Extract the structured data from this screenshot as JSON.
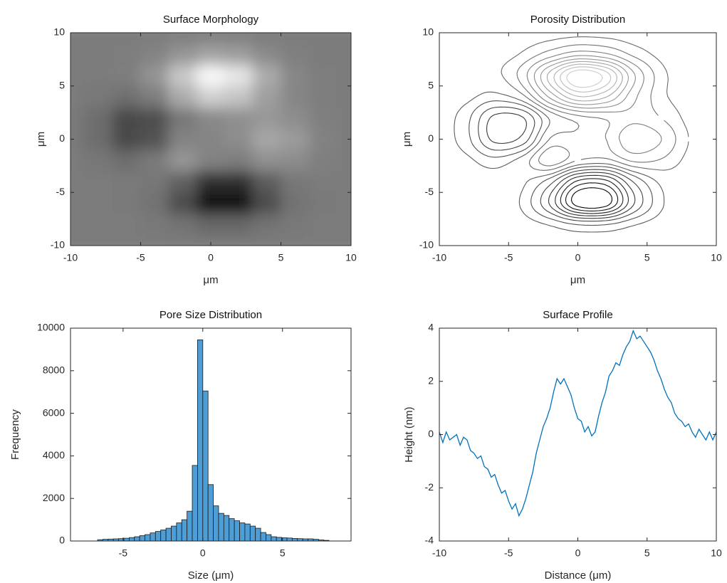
{
  "chart_data": [
    {
      "type": "heatmap",
      "title": "Surface Morphology",
      "xlabel": "μm",
      "ylabel": "μm",
      "colormap": "gray",
      "x": [
        -10,
        -8,
        -6,
        -4,
        -2,
        0,
        2,
        4,
        6,
        8,
        10
      ],
      "y": [
        -10,
        -8,
        -6,
        -4,
        -2,
        0,
        2,
        4,
        6,
        8,
        10
      ],
      "z": [
        [
          0,
          0,
          0,
          0,
          0,
          -0.01,
          -0.01,
          0,
          0,
          0,
          0
        ],
        [
          0,
          0,
          0,
          -0.04,
          -0.18,
          -0.42,
          -0.42,
          -0.18,
          -0.04,
          0,
          0
        ],
        [
          0,
          0,
          -0.02,
          -0.2,
          -1.05,
          -2.39,
          -2.39,
          -1.05,
          -0.2,
          -0.02,
          0
        ],
        [
          0,
          -0.01,
          -0.03,
          -0.1,
          -0.58,
          -1.68,
          -1.72,
          -0.69,
          -0.09,
          0,
          0
        ],
        [
          -0.01,
          -0.09,
          -0.3,
          -0.02,
          0.6,
          0.15,
          0.06,
          0.45,
          0.37,
          0.08,
          0
        ],
        [
          -0.03,
          -0.32,
          -1.09,
          -0.9,
          0.17,
          0.21,
          0.39,
          0.96,
          0.71,
          0.15,
          0.01
        ],
        [
          -0.03,
          -0.32,
          -1.09,
          -1.03,
          -0.1,
          0.28,
          0.44,
          0.62,
          0.4,
          0.08,
          0
        ],
        [
          -0.01,
          -0.08,
          -0.25,
          0.06,
          1.08,
          1.88,
          1.64,
          0.8,
          0.23,
          0.03,
          0
        ],
        [
          0,
          0,
          0.07,
          0.54,
          1.72,
          2.8,
          2.38,
          1.07,
          0.25,
          0.03,
          0
        ],
        [
          0,
          0,
          0.03,
          0.18,
          0.54,
          0.87,
          0.74,
          0.33,
          0.08,
          0.01,
          0
        ],
        [
          0,
          0,
          0,
          0.01,
          0.03,
          0.06,
          0.05,
          0.02,
          0.01,
          0,
          0
        ]
      ],
      "xlim": [
        -10,
        10
      ],
      "ylim": [
        -10,
        10
      ],
      "xticks": [
        -10,
        -5,
        0,
        5,
        10
      ],
      "yticks": [
        -10,
        -5,
        0,
        5,
        10
      ]
    },
    {
      "type": "contour",
      "title": "Porosity Distribution",
      "xlabel": "μm",
      "ylabel": "μm",
      "colormap": "gray",
      "x": [
        -10,
        -8,
        -6,
        -4,
        -2,
        0,
        2,
        4,
        6,
        8,
        10
      ],
      "y": [
        -10,
        -8,
        -6,
        -4,
        -2,
        0,
        2,
        4,
        6,
        8,
        10
      ],
      "z": [
        [
          0,
          0,
          0,
          0,
          0,
          -0.01,
          -0.01,
          0,
          0,
          0,
          0
        ],
        [
          0,
          0,
          0,
          -0.04,
          -0.18,
          -0.42,
          -0.42,
          -0.18,
          -0.04,
          0,
          0
        ],
        [
          0,
          0,
          -0.02,
          -0.2,
          -1.05,
          -2.39,
          -2.39,
          -1.05,
          -0.2,
          -0.02,
          0
        ],
        [
          0,
          -0.01,
          -0.03,
          -0.1,
          -0.58,
          -1.68,
          -1.72,
          -0.69,
          -0.09,
          0,
          0
        ],
        [
          -0.01,
          -0.09,
          -0.3,
          -0.02,
          0.6,
          0.15,
          0.06,
          0.45,
          0.37,
          0.08,
          0
        ],
        [
          -0.03,
          -0.32,
          -1.09,
          -0.9,
          0.17,
          0.21,
          0.39,
          0.96,
          0.71,
          0.15,
          0.01
        ],
        [
          -0.03,
          -0.32,
          -1.09,
          -1.03,
          -0.1,
          0.28,
          0.44,
          0.62,
          0.4,
          0.08,
          0
        ],
        [
          -0.01,
          -0.08,
          -0.25,
          0.06,
          1.08,
          1.88,
          1.64,
          0.8,
          0.23,
          0.03,
          0
        ],
        [
          0,
          0,
          0.07,
          0.54,
          1.72,
          2.8,
          2.38,
          1.07,
          0.25,
          0.03,
          0
        ],
        [
          0,
          0,
          0.03,
          0.18,
          0.54,
          0.87,
          0.74,
          0.33,
          0.08,
          0.01,
          0
        ],
        [
          0,
          0,
          0,
          0.01,
          0.03,
          0.06,
          0.05,
          0.02,
          0.01,
          0,
          0
        ]
      ],
      "levels": [
        -2.2,
        -1.9,
        -1.6,
        -1.3,
        -1.0,
        -0.7,
        -0.4,
        -0.15,
        0.15,
        0.4,
        0.7,
        1.0,
        1.3,
        1.6,
        1.9,
        2.2,
        2.5
      ],
      "xlim": [
        -10,
        10
      ],
      "ylim": [
        -10,
        10
      ],
      "xticks": [
        -10,
        -5,
        0,
        5,
        10
      ],
      "yticks": [
        -10,
        -5,
        0,
        5,
        10
      ]
    },
    {
      "type": "histogram",
      "title": "Pore Size Distribution",
      "xlabel": "Size (μm)",
      "ylabel": "Frequency",
      "color": "#4d9ed6",
      "edge_color": "#1a1a1a",
      "bins": [
        -6.6,
        -6.27,
        -5.94,
        -5.61,
        -5.28,
        -4.95,
        -4.62,
        -4.29,
        -3.96,
        -3.63,
        -3.3,
        -2.97,
        -2.64,
        -2.31,
        -1.98,
        -1.65,
        -1.32,
        -0.99,
        -0.66,
        -0.33,
        0,
        0.33,
        0.66,
        0.99,
        1.32,
        1.65,
        1.98,
        2.31,
        2.64,
        2.97,
        3.3,
        3.63,
        3.96,
        4.29,
        4.62,
        4.95,
        5.28,
        5.61,
        5.94,
        6.27,
        6.6,
        6.93,
        7.26,
        7.59,
        7.92
      ],
      "values": [
        60,
        80,
        90,
        100,
        110,
        130,
        160,
        200,
        250,
        300,
        380,
        450,
        520,
        600,
        700,
        850,
        1000,
        1400,
        3550,
        9450,
        7050,
        2650,
        1650,
        1300,
        1200,
        1050,
        950,
        850,
        800,
        700,
        600,
        400,
        300,
        200,
        170,
        150,
        140,
        120,
        110,
        100,
        100,
        80,
        50,
        30
      ],
      "xlim": [
        -8.3,
        9.3
      ],
      "ylim": [
        0,
        10000
      ],
      "xticks": [
        -5,
        0,
        5
      ],
      "yticks": [
        0,
        2000,
        4000,
        6000,
        8000,
        10000
      ]
    },
    {
      "type": "line",
      "title": "Surface Profile",
      "xlabel": "Distance (μm)",
      "ylabel": "Height (nm)",
      "color": "#0072bd",
      "x": [
        -10,
        -9.75,
        -9.5,
        -9.25,
        -9,
        -8.75,
        -8.5,
        -8.25,
        -8,
        -7.75,
        -7.5,
        -7.25,
        -7,
        -6.75,
        -6.5,
        -6.25,
        -6,
        -5.75,
        -5.5,
        -5.25,
        -5,
        -4.75,
        -4.5,
        -4.25,
        -4,
        -3.75,
        -3.5,
        -3.25,
        -3,
        -2.75,
        -2.5,
        -2.25,
        -2,
        -1.75,
        -1.5,
        -1.25,
        -1,
        -0.75,
        -0.5,
        -0.25,
        0,
        0.25,
        0.5,
        0.75,
        1,
        1.25,
        1.5,
        1.75,
        2,
        2.25,
        2.5,
        2.75,
        3,
        3.25,
        3.5,
        3.75,
        4,
        4.25,
        4.5,
        4.75,
        5,
        5.25,
        5.5,
        5.75,
        6,
        6.25,
        6.5,
        6.75,
        7,
        7.25,
        7.5,
        7.75,
        8,
        8.25,
        8.5,
        8.75,
        9,
        9.25,
        9.5,
        9.75,
        10
      ],
      "values": [
        0.1,
        -0.3,
        0.1,
        -0.2,
        -0.1,
        0.0,
        -0.4,
        -0.1,
        -0.2,
        -0.6,
        -0.7,
        -0.9,
        -0.8,
        -1.2,
        -1.3,
        -1.6,
        -1.5,
        -1.9,
        -2.2,
        -2.1,
        -2.5,
        -2.8,
        -2.6,
        -3.05,
        -2.8,
        -2.4,
        -1.9,
        -1.4,
        -0.7,
        -0.2,
        0.3,
        0.6,
        1.0,
        1.6,
        2.1,
        1.9,
        2.1,
        1.8,
        1.5,
        1.0,
        0.6,
        0.5,
        0.1,
        0.3,
        -0.05,
        0.1,
        0.7,
        1.2,
        1.6,
        2.2,
        2.4,
        2.7,
        2.6,
        3.0,
        3.3,
        3.5,
        3.9,
        3.6,
        3.7,
        3.5,
        3.3,
        3.1,
        2.8,
        2.4,
        2.1,
        1.7,
        1.4,
        1.2,
        0.8,
        0.6,
        0.5,
        0.3,
        0.4,
        0.1,
        -0.1,
        0.2,
        0.0,
        -0.2,
        0.1,
        -0.2,
        0.1
      ],
      "xlim": [
        -10,
        10
      ],
      "ylim": [
        -4,
        4
      ],
      "xticks": [
        -10,
        -5,
        0,
        5,
        10
      ],
      "yticks": [
        -4,
        -2,
        0,
        2,
        4
      ]
    }
  ]
}
